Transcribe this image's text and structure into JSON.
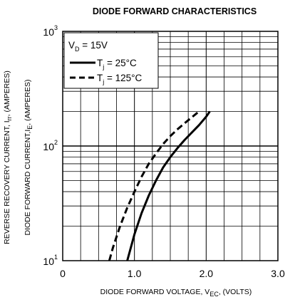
{
  "chart_data": {
    "type": "line",
    "title": "DIODE FORWARD CHARACTERISTICS",
    "xlabel": {
      "main": "DIODE FORWARD VOLTAGE, V",
      "sub": "EC",
      "tail": ", (VOLTS)"
    },
    "ylabel_outer": {
      "main": "REVERSE RECOVERY CURRENT, I",
      "sub": "rr",
      "tail": ", (AMPERES)"
    },
    "ylabel_inner": {
      "main": "DIODE FORWARD CURRENT,I",
      "sub": "E",
      "tail": ", (AMPERES)"
    },
    "x_ticks": [
      "0",
      "1.0",
      "2.0",
      "3.0"
    ],
    "y_ticks": [
      {
        "base": "10",
        "exp": "1"
      },
      {
        "base": "10",
        "exp": "2"
      },
      {
        "base": "10",
        "exp": "3"
      }
    ],
    "xlim": [
      0,
      3.0
    ],
    "ylim": [
      10,
      1000
    ],
    "y_scale": "log",
    "grid": true,
    "legend": {
      "position": "top-left",
      "condition": {
        "main": "V",
        "sub": "D",
        "tail": " = 15V"
      },
      "entries": [
        {
          "prefix": "T",
          "sub": "j",
          "tail": " = 25°C",
          "style": "solid"
        },
        {
          "prefix": "T",
          "sub": "j",
          "tail": " = 125°C",
          "style": "dashed"
        }
      ]
    },
    "series": [
      {
        "style": "solid",
        "x": [
          0.9,
          0.95,
          1.0,
          1.1,
          1.2,
          1.3,
          1.4,
          1.5,
          1.6,
          1.7,
          1.8,
          1.9,
          2.0,
          2.05
        ],
        "y": [
          10,
          13,
          17,
          26,
          37,
          50,
          65,
          80,
          96,
          113,
          131,
          152,
          180,
          200
        ]
      },
      {
        "style": "dashed",
        "x": [
          0.65,
          0.7,
          0.8,
          0.9,
          1.0,
          1.1,
          1.2,
          1.3,
          1.4,
          1.5,
          1.6,
          1.7,
          1.8,
          1.9
        ],
        "y": [
          10,
          13,
          20,
          29,
          40,
          54,
          70,
          86,
          104,
          122,
          140,
          158,
          178,
          200
        ]
      }
    ],
    "colors": {
      "line": "#000000",
      "grid": "#000000",
      "background": "#ffffff"
    }
  }
}
